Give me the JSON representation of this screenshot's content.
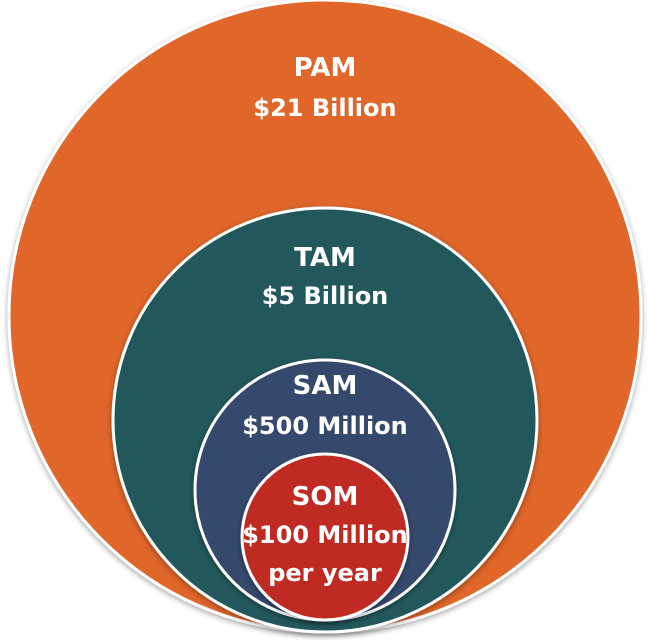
{
  "colors": {
    "pam": "#e0662b",
    "tam": "#23595c",
    "sam": "#35486c",
    "som": "#bf2b24",
    "stroke": "#ffffff"
  },
  "circles": [
    {
      "name": "PAM",
      "value": "$21 Billion"
    },
    {
      "name": "TAM",
      "value": "$5 Billion"
    },
    {
      "name": "SAM",
      "value": "$500 Million"
    },
    {
      "name": "SOM",
      "value": "$100 Million",
      "note": "per year"
    }
  ]
}
